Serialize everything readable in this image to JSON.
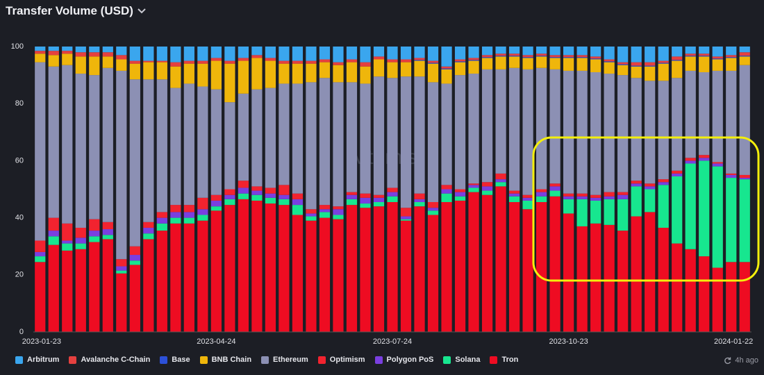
{
  "chart_data": {
    "type": "stacked-bar",
    "title": "Transfer Volume (USD)",
    "updated": "4h ago",
    "watermark": "Artemis",
    "categories": [
      "2023-01-23",
      null,
      null,
      null,
      null,
      null,
      null,
      null,
      null,
      null,
      null,
      null,
      null,
      "2023-04-24",
      null,
      null,
      null,
      null,
      null,
      null,
      null,
      null,
      null,
      null,
      null,
      null,
      "2023-07-24",
      null,
      null,
      null,
      null,
      null,
      null,
      null,
      null,
      null,
      null,
      null,
      null,
      "2023-10-23",
      null,
      null,
      null,
      null,
      null,
      null,
      null,
      null,
      null,
      null,
      null,
      null,
      "2024-01-22"
    ],
    "ylim": [
      0,
      100
    ],
    "yticks": [
      0,
      20,
      40,
      60,
      80,
      100
    ],
    "grid": false,
    "series": [
      {
        "name": "Arbitrum",
        "color": "#3aa6ee",
        "values": [
          1.5,
          1.5,
          1.5,
          2,
          2,
          2,
          3,
          5,
          5,
          5,
          5.5,
          5,
          5,
          4,
          5,
          4,
          3,
          4,
          5,
          5,
          5,
          4.5,
          5.5,
          4.5,
          5.5,
          3.5,
          4.5,
          4.5,
          4,
          5,
          7,
          4.5,
          4,
          3,
          2.5,
          2.5,
          3,
          2.5,
          3,
          3,
          3,
          3.5,
          4.5,
          5.5,
          5.5,
          5.5,
          5,
          3.5,
          2.5,
          2.5,
          3.5,
          3,
          2
        ]
      },
      {
        "name": "Avalanche C-Chain",
        "color": "#e5403f",
        "values": [
          1,
          1.5,
          1,
          1.5,
          1.5,
          1.5,
          1.5,
          1,
          0.5,
          0.5,
          1.5,
          1,
          1,
          1,
          1,
          1,
          1,
          1,
          1,
          1,
          1,
          1,
          1,
          1,
          1.5,
          1,
          1,
          1,
          0.7,
          0.7,
          0.7,
          0.7,
          0.7,
          0.7,
          0.7,
          0.7,
          0.7,
          0.7,
          0.7,
          0.7,
          0.7,
          0.7,
          0.7,
          0.7,
          1.2,
          1.2,
          0.7,
          1.2,
          0.7,
          0.7,
          0.7,
          0.7,
          1.2
        ]
      },
      {
        "name": "Base",
        "color": "#2c50d8",
        "values": [
          0,
          0,
          0,
          0,
          0,
          0,
          0,
          0,
          0,
          0,
          0,
          0,
          0,
          0,
          0,
          0,
          0,
          0,
          0,
          0,
          0,
          0,
          0,
          0,
          0,
          0,
          0,
          0,
          0.3,
          0.3,
          0.3,
          0.3,
          0.3,
          0.3,
          0.3,
          0.3,
          0.3,
          0.3,
          0.3,
          0.3,
          0.3,
          0.3,
          0.3,
          0.3,
          0.3,
          0.3,
          0.3,
          0.3,
          0.3,
          0.3,
          0.3,
          0.3,
          0.3
        ]
      },
      {
        "name": "BNB Chain",
        "color": "#efb60b",
        "values": [
          3,
          4,
          4,
          6,
          6.5,
          4,
          4,
          5.5,
          6,
          6,
          7.5,
          7,
          8,
          10,
          13.5,
          11.5,
          11,
          9.5,
          7,
          7,
          6.5,
          5.5,
          6,
          7,
          6,
          6,
          5.5,
          5,
          5.5,
          6.5,
          5,
          4.5,
          4.5,
          4,
          4.5,
          4,
          4,
          4,
          4,
          4.5,
          4.5,
          4.5,
          4,
          3.5,
          4,
          5,
          6,
          6,
          5,
          5.5,
          4,
          4.5,
          3
        ]
      },
      {
        "name": "Ethereum",
        "color": "#8c90b4",
        "values": [
          62.5,
          53,
          55.5,
          54,
          50.5,
          54,
          66,
          58.5,
          50,
          46.5,
          41,
          42.5,
          39,
          37,
          30.5,
          30.5,
          34,
          35,
          35.5,
          38.5,
          44.5,
          44.5,
          43.5,
          38.5,
          38.5,
          41.5,
          38.5,
          46,
          41,
          42,
          35.5,
          40,
          38.5,
          39.5,
          36.5,
          43,
          44,
          42.5,
          40,
          43,
          43,
          43,
          41.5,
          41,
          36,
          36,
          34.5,
          32.5,
          30.5,
          29,
          32,
          36,
          38.5
        ]
      },
      {
        "name": "Optimism",
        "color": "#f2232f",
        "values": [
          4,
          4.5,
          6,
          3.5,
          4,
          2.5,
          2.5,
          3,
          2,
          2,
          2.5,
          2.5,
          4,
          2,
          2,
          2.5,
          1.5,
          2,
          3.5,
          2,
          1.5,
          1.5,
          1,
          1,
          1.5,
          1,
          1.5,
          3,
          2,
          2,
          1.5,
          1,
          0.5,
          1.5,
          2,
          1,
          1,
          1,
          1,
          1,
          1,
          1,
          1.5,
          1,
          1,
          1,
          1,
          1,
          1,
          1,
          0.5,
          0.5,
          1
        ]
      },
      {
        "name": "Polygon PoS",
        "color": "#7a3fe0",
        "values": [
          1.5,
          2,
          1,
          2,
          2,
          2,
          1.5,
          2,
          2,
          2,
          2,
          2,
          2,
          2,
          1.5,
          2,
          1.5,
          1.5,
          1.5,
          2,
          1,
          1,
          2,
          1.5,
          2,
          1.5,
          1.5,
          1,
          1,
          1,
          1.5,
          1.5,
          1,
          1.5,
          1,
          1,
          1,
          1.5,
          1.5,
          1,
          1,
          1,
          1,
          1.5,
          1,
          1,
          1,
          1,
          1,
          1,
          1,
          1,
          0.5
        ]
      },
      {
        "name": "Solana",
        "color": "#17e68f",
        "values": [
          2,
          3,
          2.5,
          2,
          2,
          1.5,
          1,
          1.5,
          2,
          2.5,
          2,
          2,
          2,
          1.5,
          2,
          2,
          2,
          2,
          2,
          3.5,
          1.5,
          2,
          1.5,
          2,
          1.5,
          1.5,
          2,
          0.5,
          1.5,
          1.5,
          3,
          1.5,
          1.5,
          1.5,
          1.5,
          2,
          3,
          2,
          2,
          5,
          9.5,
          8,
          9,
          11,
          10.5,
          8,
          15,
          23.5,
          30,
          33.5,
          35.5,
          29.5,
          29
        ]
      },
      {
        "name": "Tron",
        "color": "#ee0c22",
        "values": [
          24.5,
          30.5,
          28.5,
          29,
          31.5,
          32.5,
          20.5,
          23.5,
          32.5,
          35.5,
          38,
          38,
          39,
          42.5,
          44.5,
          46.5,
          46,
          45,
          44.5,
          41,
          39,
          40,
          39.5,
          44.5,
          43.5,
          44,
          45.5,
          39,
          44,
          41,
          45.5,
          46,
          49,
          48,
          51,
          45.5,
          43,
          45.5,
          47.5,
          41.5,
          37,
          38,
          37.5,
          35.5,
          40.5,
          42,
          36.5,
          31,
          29,
          26.5,
          22.5,
          24.5,
          24.5
        ]
      }
    ]
  }
}
